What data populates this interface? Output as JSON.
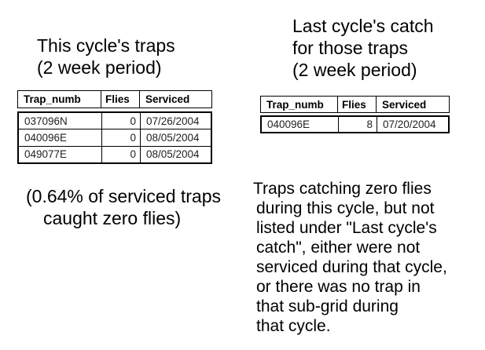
{
  "headings": {
    "left": {
      "lines": [
        "This cycle's traps",
        "(2 week period)"
      ]
    },
    "right": {
      "lines": [
        "Last cycle's catch",
        "for those traps",
        "(2 week period)"
      ]
    }
  },
  "tables": {
    "left": {
      "columns": [
        "Trap_numb",
        "Flies",
        "Serviced"
      ],
      "rows": [
        [
          "037096N",
          "0",
          "07/26/2004"
        ],
        [
          "040096E",
          "0",
          "08/05/2004"
        ],
        [
          "049077E",
          "0",
          "08/05/2004"
        ]
      ]
    },
    "right": {
      "columns": [
        "Trap_numb",
        "Flies",
        "Serviced"
      ],
      "rows": [
        [
          "040096E",
          "8",
          "07/20/2004"
        ]
      ]
    }
  },
  "notes": {
    "left": {
      "lines": [
        "(0.64% of serviced traps",
        "caught zero flies)"
      ]
    },
    "right": {
      "lines": [
        "Traps catching zero flies",
        "during this cycle, but not",
        "listed under \"Last cycle's",
        "catch\", either were not",
        "serviced during that cycle,",
        "or there was no trap in",
        "that sub-grid during",
        "that cycle."
      ]
    }
  },
  "colors": {
    "background": "#ffffff",
    "text": "#000000",
    "table_border": "#000000",
    "table_data_text": "#1f1f1f"
  }
}
